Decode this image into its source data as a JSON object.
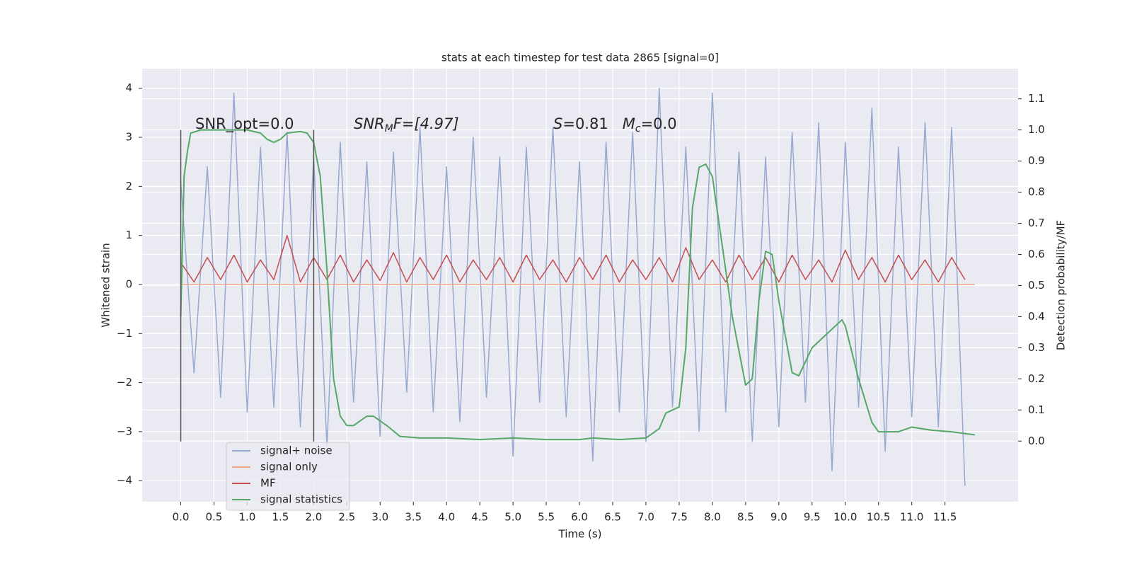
{
  "chart_data": {
    "type": "line",
    "title": "stats at each timestep for test data 2865 [signal=0]",
    "xlabel": "Time (s)",
    "ylabel": "Whitened strain",
    "y2label": "Detection probability/MF",
    "xlim": [
      -0.58,
      12.6
    ],
    "ylim": [
      -4.43,
      4.4
    ],
    "y2lim": [
      -0.195,
      1.197
    ],
    "xticks": [
      {
        "value": 0,
        "label": "0.0"
      },
      0.5,
      {
        "value": 1,
        "label": "1.0"
      },
      1.5,
      {
        "value": 2,
        "label": "2.0"
      },
      2.5,
      {
        "value": 3,
        "label": "3.0"
      },
      3.5,
      {
        "value": 4,
        "label": "4.0"
      },
      4.5,
      {
        "value": 5,
        "label": "5.0"
      },
      5.5,
      {
        "value": 6,
        "label": "6.0"
      },
      6.5,
      {
        "value": 7,
        "label": "7.0"
      },
      7.5,
      {
        "value": 8,
        "label": "8.0"
      },
      8.5,
      {
        "value": 9,
        "label": "9.0"
      },
      9.5,
      {
        "value": 10,
        "label": "10.0"
      },
      10.5,
      {
        "value": 11,
        "label": "11.0"
      },
      11.5
    ],
    "yticks": [
      {
        "value": -4,
        "label": "−4"
      },
      {
        "value": -3,
        "label": "−3"
      },
      {
        "value": -2,
        "label": "−2"
      },
      {
        "value": -1,
        "label": "−1"
      },
      0,
      1,
      2,
      3,
      4
    ],
    "y2ticks": [
      {
        "value": 0,
        "label": "0.0"
      },
      0.1,
      0.2,
      0.3,
      0.4,
      0.5,
      0.6,
      0.7,
      0.8,
      0.9,
      {
        "value": 1,
        "label": "1.0"
      },
      1.1
    ],
    "grid": true,
    "legend": "lower left",
    "annotations": [
      [
        "SNR_opt=0.0"
      ],
      [
        "SNR",
        "M",
        "F=[4.97]"
      ],
      [
        "S",
        "=0.81   ",
        "M",
        "c",
        "=0.0"
      ]
    ],
    "vlines": {
      "x": [
        0,
        2
      ],
      "ymin": -3.2,
      "ymax": 3.15,
      "color": "#555555"
    },
    "series": [
      {
        "name": "signal+ noise",
        "color": "#98a9cf",
        "x": [
          0,
          0.2,
          0.4,
          0.6,
          0.8,
          1,
          1.2,
          1.4,
          1.6,
          1.8,
          2,
          2.2,
          2.4,
          2.6,
          2.8,
          3,
          3.2,
          3.4,
          3.6,
          3.8,
          4,
          4.2,
          4.4,
          4.6,
          4.8,
          5,
          5.2,
          5.4,
          5.6,
          5.8,
          6,
          6.2,
          6.4,
          6.6,
          6.8,
          7,
          7.2,
          7.4,
          7.6,
          7.8,
          8,
          8.2,
          8.4,
          8.6,
          8.8,
          9,
          9.2,
          9.4,
          9.6,
          9.8,
          10,
          10.2,
          10.4,
          10.6,
          10.8,
          11,
          11.2,
          11.4,
          11.6,
          11.8
        ],
        "values": [
          2.1,
          -1.8,
          2.4,
          -2.3,
          3.9,
          -2.6,
          2.8,
          -2.5,
          3.1,
          -2.9,
          2.6,
          -3.3,
          2.9,
          -2.4,
          2.5,
          -3.1,
          2.7,
          -2.2,
          3.2,
          -2.6,
          2.4,
          -2.8,
          3.0,
          -2.3,
          2.6,
          -3.5,
          2.8,
          -2.4,
          3.2,
          -2.7,
          2.5,
          -3.6,
          2.9,
          -2.6,
          3.1,
          -3.2,
          4.0,
          -2.5,
          2.8,
          -3.0,
          3.9,
          -2.6,
          2.7,
          -3.2,
          2.6,
          -2.9,
          3.1,
          -2.4,
          3.3,
          -3.8,
          2.9,
          -2.5,
          3.6,
          -3.4,
          2.8,
          -2.7,
          3.3,
          -2.9,
          3.2,
          -4.1
        ]
      },
      {
        "name": "signal only",
        "color": "#eda88a",
        "x": [
          0,
          11.95
        ],
        "values": [
          0,
          0
        ]
      },
      {
        "name": "MF",
        "color": "#c44e52",
        "x": [
          0,
          0.2,
          0.4,
          0.6,
          0.8,
          1,
          1.2,
          1.4,
          1.6,
          1.8,
          2,
          2.2,
          2.4,
          2.6,
          2.8,
          3,
          3.2,
          3.4,
          3.6,
          3.8,
          4,
          4.2,
          4.4,
          4.6,
          4.8,
          5,
          5.2,
          5.4,
          5.6,
          5.8,
          6,
          6.2,
          6.4,
          6.6,
          6.8,
          7,
          7.2,
          7.4,
          7.6,
          7.8,
          8,
          8.2,
          8.4,
          8.6,
          8.8,
          9,
          9.2,
          9.4,
          9.6,
          9.8,
          10,
          10.2,
          10.4,
          10.6,
          10.8,
          11,
          11.2,
          11.4,
          11.6,
          11.8
        ],
        "values": [
          0.45,
          0.05,
          0.55,
          0.1,
          0.6,
          0.05,
          0.5,
          0.1,
          1.0,
          0.05,
          0.55,
          0.1,
          0.6,
          0.05,
          0.5,
          0.08,
          0.65,
          0.05,
          0.55,
          0.1,
          0.6,
          0.05,
          0.5,
          0.1,
          0.55,
          0.05,
          0.6,
          0.1,
          0.5,
          0.05,
          0.55,
          0.1,
          0.6,
          0.05,
          0.5,
          0.1,
          0.55,
          0.05,
          0.75,
          0.1,
          0.5,
          0.05,
          0.6,
          0.1,
          0.55,
          0.05,
          0.6,
          0.1,
          0.5,
          0.05,
          0.7,
          0.1,
          0.55,
          0.05,
          0.6,
          0.1,
          0.5,
          0.05,
          0.55,
          0.1
        ]
      },
      {
        "name": "signal statistics",
        "color": "#55a868",
        "axis": "y2",
        "x": [
          0,
          0.05,
          0.1,
          0.15,
          0.3,
          1.0,
          1.2,
          1.3,
          1.4,
          1.5,
          1.6,
          1.8,
          1.9,
          2.0,
          2.1,
          2.2,
          2.3,
          2.4,
          2.5,
          2.6,
          2.8,
          2.9,
          3.1,
          3.3,
          3.6,
          4.0,
          4.5,
          5.0,
          5.5,
          6.0,
          6.2,
          6.6,
          7.0,
          7.2,
          7.3,
          7.5,
          7.6,
          7.7,
          7.8,
          7.9,
          8.0,
          8.1,
          8.3,
          8.5,
          8.6,
          8.7,
          8.8,
          8.9,
          9.0,
          9.2,
          9.3,
          9.5,
          9.7,
          9.8,
          9.95,
          10.0,
          10.2,
          10.4,
          10.5,
          10.8,
          11.0,
          11.3,
          11.6,
          11.95
        ],
        "values": [
          0.4,
          0.85,
          0.93,
          0.99,
          1.0,
          1.0,
          0.99,
          0.97,
          0.96,
          0.97,
          0.99,
          0.995,
          0.99,
          0.96,
          0.85,
          0.55,
          0.2,
          0.08,
          0.05,
          0.05,
          0.08,
          0.08,
          0.05,
          0.015,
          0.01,
          0.01,
          0.005,
          0.01,
          0.005,
          0.005,
          0.01,
          0.005,
          0.01,
          0.04,
          0.09,
          0.11,
          0.3,
          0.75,
          0.88,
          0.89,
          0.85,
          0.7,
          0.4,
          0.18,
          0.2,
          0.45,
          0.61,
          0.6,
          0.45,
          0.22,
          0.21,
          0.3,
          0.34,
          0.36,
          0.39,
          0.37,
          0.2,
          0.06,
          0.03,
          0.03,
          0.045,
          0.035,
          0.03,
          0.02
        ]
      }
    ]
  }
}
